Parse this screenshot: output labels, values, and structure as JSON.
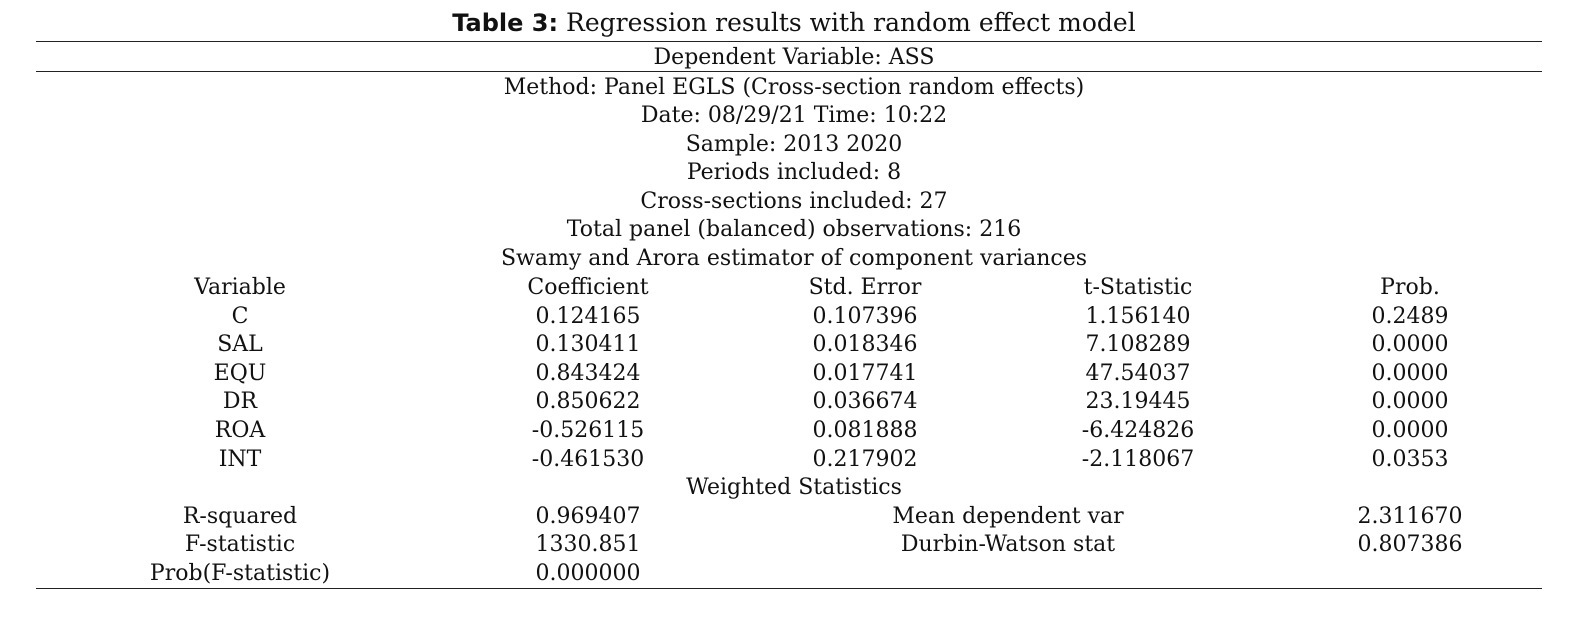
{
  "table": {
    "title_prefix": "Table 3:",
    "title_text": "Regression results with random effect model",
    "dependent_variable": "Dependent Variable: ASS",
    "meta": [
      "Method: Panel EGLS (Cross-section random effects)",
      "Date: 08/29/21 Time: 10:22",
      "Sample: 2013 2020",
      "Periods included: 8",
      "Cross-sections included: 27",
      "Total panel (balanced) observations: 216",
      "Swamy and Arora estimator of component variances"
    ],
    "columns": [
      "Variable",
      "Coefficient",
      "Std. Error",
      "t-Statistic",
      "Prob."
    ],
    "rows": [
      [
        "C",
        "0.124165",
        "0.107396",
        "1.156140",
        "0.2489"
      ],
      [
        "SAL",
        "0.130411",
        "0.018346",
        "7.108289",
        "0.0000"
      ],
      [
        "EQU",
        "0.843424",
        "0.017741",
        "47.54037",
        "0.0000"
      ],
      [
        "DR",
        "0.850622",
        "0.036674",
        "23.19445",
        "0.0000"
      ],
      [
        "ROA",
        "-0.526115",
        "0.081888",
        "-6.424826",
        "0.0000"
      ],
      [
        "INT",
        "-0.461530",
        "0.217902",
        "-2.118067",
        "0.0353"
      ]
    ],
    "weighted_heading": "Weighted Statistics",
    "weighted": [
      [
        "R-squared",
        "0.969407",
        "Mean dependent var",
        "2.311670"
      ],
      [
        "F-statistic",
        "1330.851",
        "Durbin-Watson stat",
        "0.807386"
      ],
      [
        "Prob(F-statistic)",
        "0.000000",
        "",
        ""
      ]
    ]
  }
}
